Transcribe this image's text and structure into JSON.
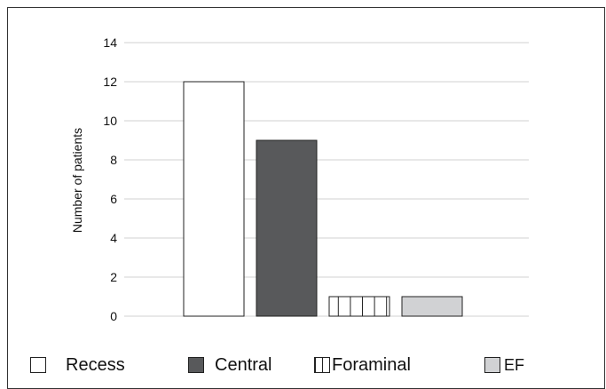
{
  "chart_data": {
    "type": "bar",
    "title": "",
    "xlabel": "",
    "ylabel": "Number of patients",
    "ylim": [
      0,
      14
    ],
    "yticks": [
      0,
      2,
      4,
      6,
      8,
      10,
      12,
      14
    ],
    "grid": true,
    "legend_placement": "bottom",
    "categories": [
      "Recess",
      "Central",
      "Foraminal",
      "EF"
    ],
    "values": [
      12,
      9,
      1,
      1
    ],
    "styles": [
      {
        "fill": "#ffffff",
        "pattern": "none"
      },
      {
        "fill": "#58595b",
        "pattern": "none"
      },
      {
        "fill": "#ffffff",
        "pattern": "vertical-lines"
      },
      {
        "fill": "#d1d2d4",
        "pattern": "none"
      }
    ]
  },
  "legend": {
    "items": [
      {
        "label": "Recess"
      },
      {
        "label": "Central"
      },
      {
        "label": "Foraminal"
      },
      {
        "label": "EF"
      }
    ]
  }
}
